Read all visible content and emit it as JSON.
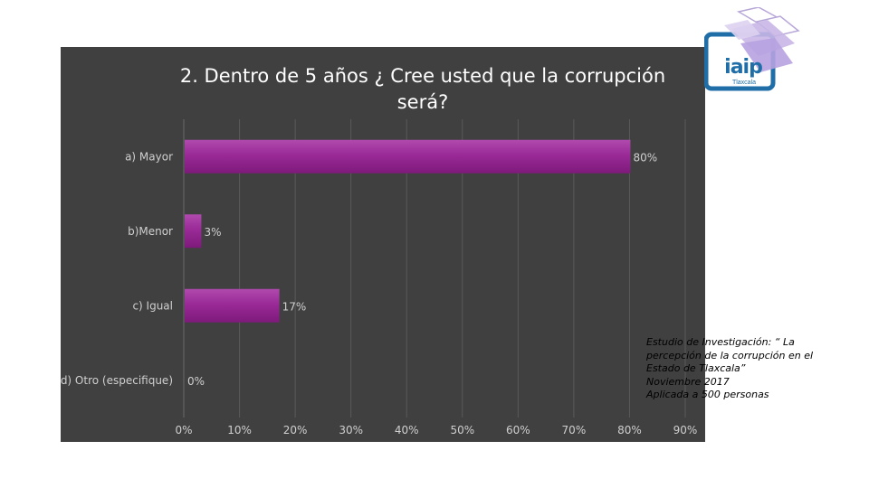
{
  "chart_data": {
    "type": "bar",
    "orientation": "horizontal",
    "title": "2. Dentro de 5 años ¿ Cree usted que la corrupción será?",
    "title_lines": [
      "2. Dentro de 5 años ¿ Cree usted que la corrupción",
      "será?"
    ],
    "categories": [
      "a) Mayor",
      "b)Menor",
      "c) Igual",
      "d) Otro (especifique)"
    ],
    "values": [
      80,
      3,
      17,
      0
    ],
    "data_labels": [
      "80%",
      "3%",
      "17%",
      "0%"
    ],
    "xlim": [
      0,
      90
    ],
    "x_ticks": [
      "0%",
      "10%",
      "20%",
      "30%",
      "40%",
      "50%",
      "60%",
      "70%",
      "80%",
      "90%"
    ],
    "grid": true,
    "legend": "none",
    "colors": {
      "background": "#404040",
      "bar": "#8e1f8b",
      "bar_light": "#b04aae",
      "text": "#cfcfcf",
      "grid": "#5a5a5a"
    }
  },
  "logo": {
    "text": "iaip",
    "subtitle": "Tlaxcala"
  },
  "note": {
    "lines": [
      "Estudio de Investigación: “ La",
      "percepción de la corrupción en el",
      "Estado de Tlaxcala”",
      "Noviembre 2017",
      "Aplicada a 500 personas"
    ]
  }
}
